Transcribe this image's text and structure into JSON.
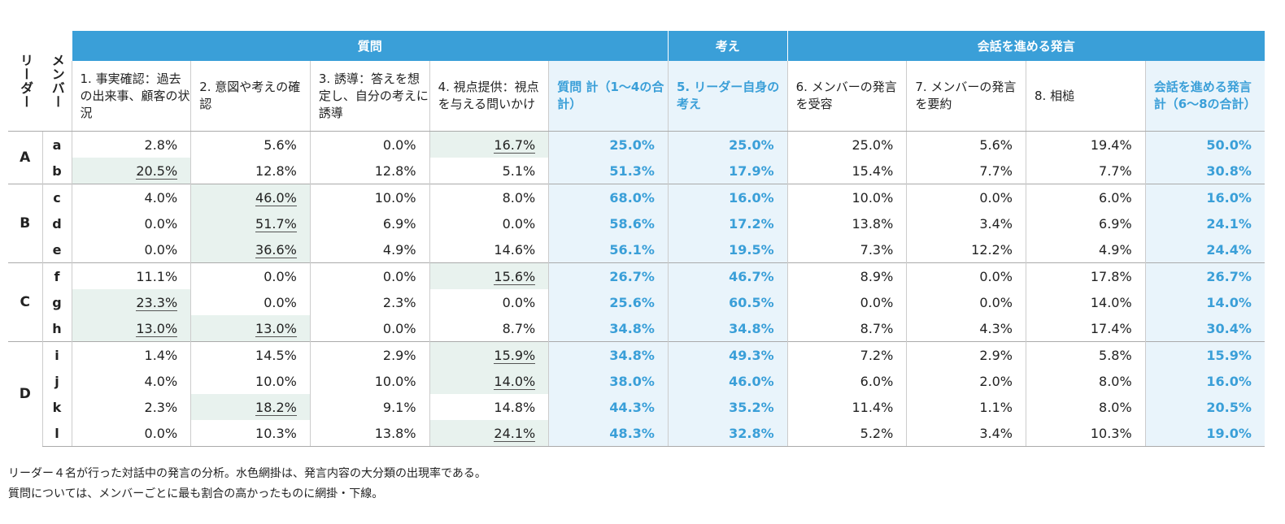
{
  "headers": {
    "leader": "リーダー",
    "member": "メンバー",
    "group_question": "質問",
    "group_thought": "考え",
    "group_conversation": "会話を進める発言",
    "columns": [
      "1. 事実確認：過去の出来事、顧客の状況",
      "2. 意図や考えの確認",
      "3. 誘導：答えを想定し、自分の考えに誘導",
      "4. 視点提供：視点を与える問いかけ",
      "質問 計（1～4の合計）",
      "5. リーダー自身の考え",
      "6. メンバーの発言を受容",
      "7. メンバーの発言を要約",
      "8. 相槌",
      "会話を進める発言 計（6～8の合計）"
    ]
  },
  "groups": [
    {
      "leader": "A",
      "rows": [
        {
          "member": "a",
          "values": [
            "2.8%",
            "5.6%",
            "0.0%",
            "16.7%",
            "25.0%",
            "25.0%",
            "25.0%",
            "5.6%",
            "19.4%",
            "50.0%"
          ],
          "highlight": [
            3
          ]
        },
        {
          "member": "b",
          "values": [
            "20.5%",
            "12.8%",
            "12.8%",
            "5.1%",
            "51.3%",
            "17.9%",
            "15.4%",
            "7.7%",
            "7.7%",
            "30.8%"
          ],
          "highlight": [
            0
          ]
        }
      ]
    },
    {
      "leader": "B",
      "rows": [
        {
          "member": "c",
          "values": [
            "4.0%",
            "46.0%",
            "10.0%",
            "8.0%",
            "68.0%",
            "16.0%",
            "10.0%",
            "0.0%",
            "6.0%",
            "16.0%"
          ],
          "highlight": [
            1
          ]
        },
        {
          "member": "d",
          "values": [
            "0.0%",
            "51.7%",
            "6.9%",
            "0.0%",
            "58.6%",
            "17.2%",
            "13.8%",
            "3.4%",
            "6.9%",
            "24.1%"
          ],
          "highlight": [
            1
          ]
        },
        {
          "member": "e",
          "values": [
            "0.0%",
            "36.6%",
            "4.9%",
            "14.6%",
            "56.1%",
            "19.5%",
            "7.3%",
            "12.2%",
            "4.9%",
            "24.4%"
          ],
          "highlight": [
            1
          ]
        }
      ]
    },
    {
      "leader": "C",
      "rows": [
        {
          "member": "f",
          "values": [
            "11.1%",
            "0.0%",
            "0.0%",
            "15.6%",
            "26.7%",
            "46.7%",
            "8.9%",
            "0.0%",
            "17.8%",
            "26.7%"
          ],
          "highlight": [
            3
          ]
        },
        {
          "member": "g",
          "values": [
            "23.3%",
            "0.0%",
            "2.3%",
            "0.0%",
            "25.6%",
            "60.5%",
            "0.0%",
            "0.0%",
            "14.0%",
            "14.0%"
          ],
          "highlight": [
            0
          ]
        },
        {
          "member": "h",
          "values": [
            "13.0%",
            "13.0%",
            "0.0%",
            "8.7%",
            "34.8%",
            "34.8%",
            "8.7%",
            "4.3%",
            "17.4%",
            "30.4%"
          ],
          "highlight": [
            0,
            1
          ]
        }
      ]
    },
    {
      "leader": "D",
      "rows": [
        {
          "member": "i",
          "values": [
            "1.4%",
            "14.5%",
            "2.9%",
            "15.9%",
            "34.8%",
            "49.3%",
            "7.2%",
            "2.9%",
            "5.8%",
            "15.9%"
          ],
          "highlight": [
            3
          ]
        },
        {
          "member": "j",
          "values": [
            "4.0%",
            "10.0%",
            "10.0%",
            "14.0%",
            "38.0%",
            "46.0%",
            "6.0%",
            "2.0%",
            "8.0%",
            "16.0%"
          ],
          "highlight": [
            3
          ]
        },
        {
          "member": "k",
          "values": [
            "2.3%",
            "18.2%",
            "9.1%",
            "14.8%",
            "44.3%",
            "35.2%",
            "11.4%",
            "1.1%",
            "8.0%",
            "20.5%"
          ],
          "highlight": [
            1
          ]
        },
        {
          "member": "l",
          "values": [
            "0.0%",
            "10.3%",
            "13.8%",
            "24.1%",
            "48.3%",
            "32.8%",
            "5.2%",
            "3.4%",
            "10.3%",
            "19.0%"
          ],
          "highlight": [
            3
          ]
        }
      ]
    }
  ],
  "caption": [
    "リーダー４名が行った対話中の発言の分析。水色網掛は、発言内容の大分類の出現率である。",
    "質問については、メンバーごとに最も割合の高かったものに網掛・下線。"
  ],
  "colors": {
    "header": "#3a9fd8",
    "summary_bg": "#e9f4fb",
    "highlight_bg": "#e8f2ee"
  }
}
